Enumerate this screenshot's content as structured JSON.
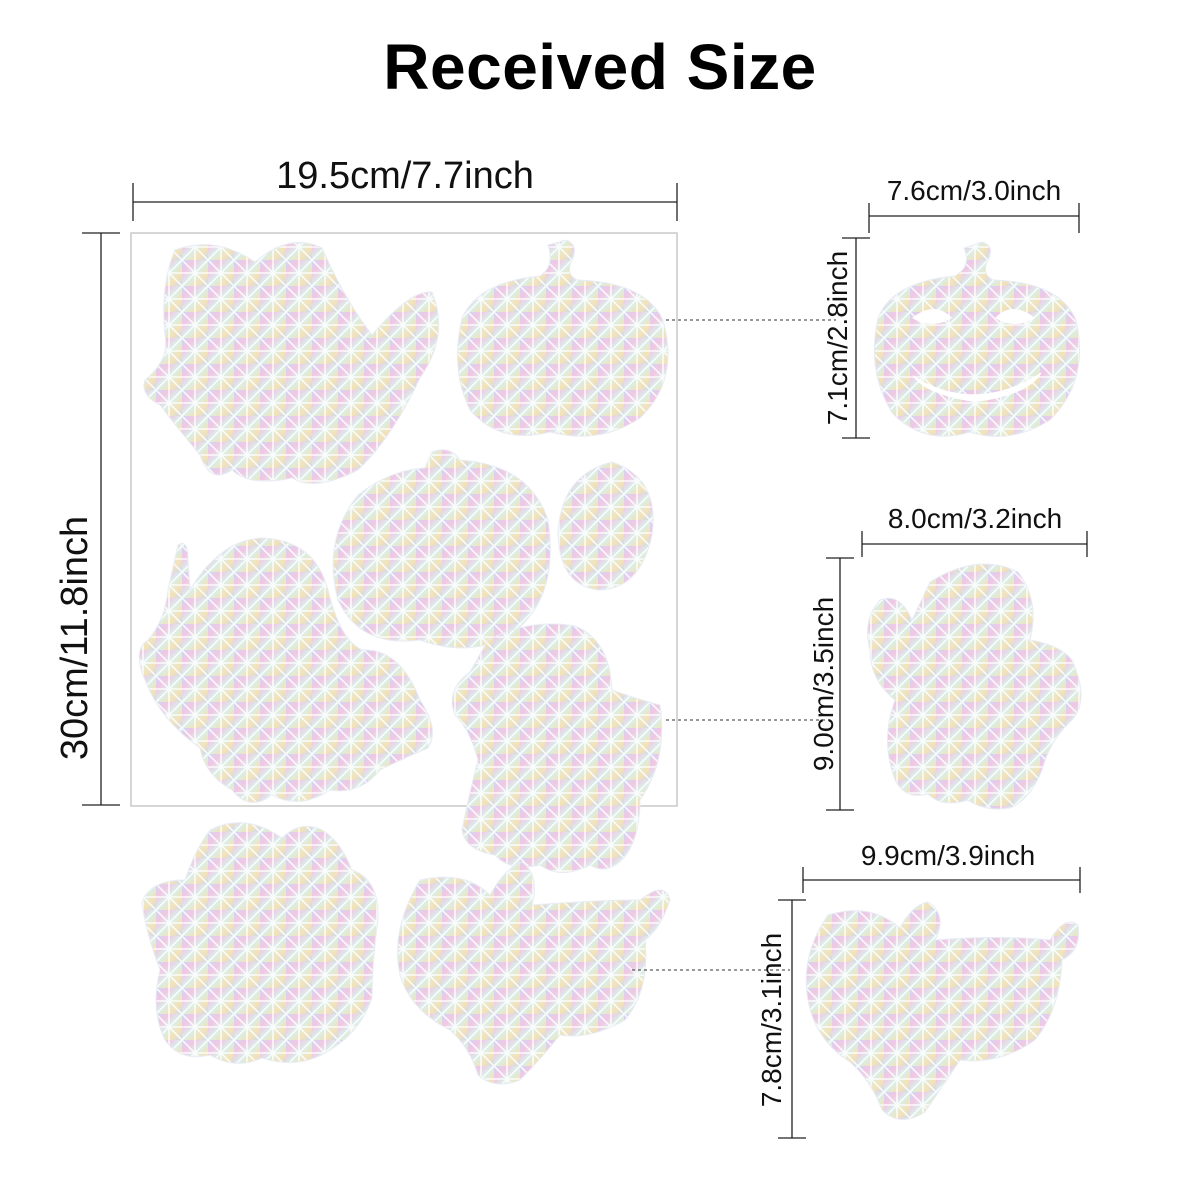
{
  "title": "Received Size",
  "sheet": {
    "width_label": "19.5cm/7.7inch",
    "height_label": "30cm/11.8inch"
  },
  "pumpkin": {
    "width_label": "7.6cm/3.0inch",
    "height_label": "7.1cm/2.8inch"
  },
  "ghost": {
    "width_label": "8.0cm/3.2inch",
    "height_label": "9.0cm/3.5inch"
  },
  "flying_ghost": {
    "width_label": "9.9cm/3.9inch",
    "height_label": "7.8cm/3.1inch"
  },
  "colors": {
    "line": "#222222",
    "sheet_border": "#c8c8c8",
    "holo_a": "#cfd8f0",
    "holo_b": "#f3c7e6",
    "holo_c": "#d9f1ec",
    "holo_d": "#f6e3b8"
  }
}
